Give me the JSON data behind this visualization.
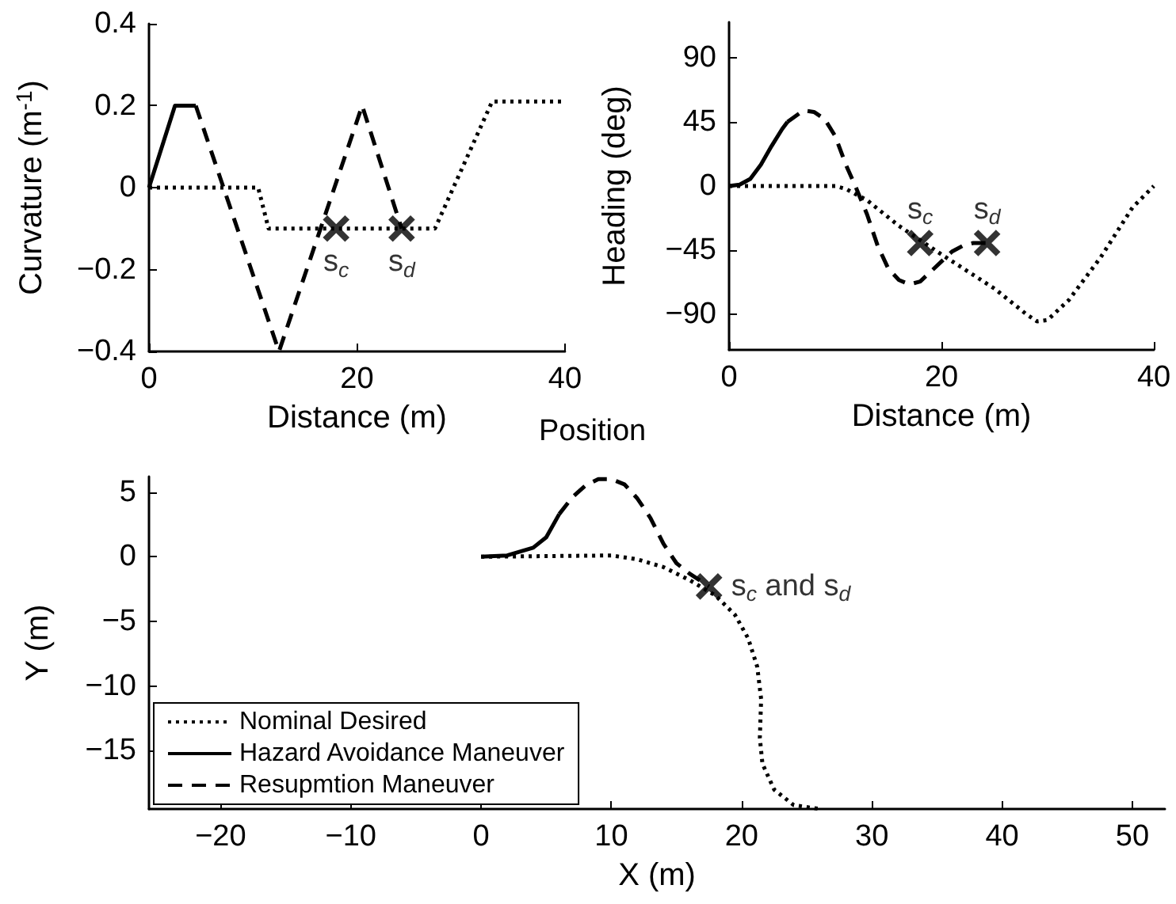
{
  "chart_data": [
    {
      "type": "line",
      "xlabel": "Distance (m)",
      "ylabel": "Curvature (m$^{-1}$)",
      "xlim": [
        0,
        40
      ],
      "ylim": [
        -0.4,
        0.4
      ],
      "xticks": [
        0,
        20,
        40
      ],
      "yticks": [
        -0.4,
        -0.2,
        0,
        0.2,
        0.4
      ],
      "series": [
        {
          "line_style": "dotted",
          "marker": "none",
          "color": "#000000",
          "x": [
            0,
            10.5,
            11.5,
            27.5,
            33,
            40
          ],
          "values": [
            0,
            0,
            -0.1,
            -0.1,
            0.21,
            0.21
          ]
        },
        {
          "line_style": "solid",
          "marker": "none",
          "color": "#000000",
          "x": [
            0,
            2.5,
            4.5
          ],
          "values": [
            0,
            0.2,
            0.2
          ]
        },
        {
          "line_style": "dashed",
          "marker": "none",
          "color": "#000000",
          "x": [
            4.5,
            12.5,
            20.5,
            24.3
          ],
          "values": [
            0.2,
            -0.4,
            0.2,
            -0.1
          ]
        },
        {
          "type": "scatter",
          "marker": "cross",
          "color": "#000000",
          "x": [
            18,
            24.3
          ],
          "values": [
            -0.1,
            -0.1
          ]
        }
      ],
      "annotations": [
        {
          "text": "s$_{c}$",
          "x": 18,
          "y": -0.1
        },
        {
          "text": "s$_{d}$",
          "x": 24.3,
          "y": -0.1
        }
      ]
    },
    {
      "type": "line",
      "xlabel": "Distance (m)",
      "ylabel": "Heading (deg)",
      "xlim": [
        0,
        40
      ],
      "ylim": [
        -115,
        115
      ],
      "xticks": [
        0,
        20,
        40
      ],
      "yticks": [
        -90,
        -45,
        0,
        45,
        90
      ],
      "series": [
        {
          "line_style": "dotted",
          "marker": "none",
          "color": "#000000",
          "x": [
            0,
            10,
            11,
            13,
            16,
            20,
            25,
            28,
            29,
            30,
            32,
            35,
            38,
            40
          ],
          "values": [
            0,
            0,
            -2,
            -10,
            -28,
            -48,
            -72,
            -90,
            -95,
            -94,
            -80,
            -50,
            -15,
            0
          ]
        },
        {
          "line_style": "solid",
          "marker": "none",
          "color": "#000000",
          "x": [
            0,
            1,
            2,
            3,
            4,
            5,
            5.5
          ],
          "values": [
            0,
            1,
            5,
            15,
            28,
            40,
            45
          ]
        },
        {
          "line_style": "dashed",
          "marker": "none",
          "color": "#000000",
          "x": [
            5.5,
            7,
            8,
            9,
            10,
            11,
            12,
            13,
            14,
            15,
            16,
            17,
            18,
            19,
            20,
            21,
            22,
            23,
            24.3
          ],
          "values": [
            45,
            53,
            52,
            47,
            35,
            15,
            -2,
            -20,
            -42,
            -58,
            -66,
            -69,
            -67,
            -60,
            -53,
            -46,
            -42,
            -40,
            -40
          ]
        },
        {
          "type": "scatter",
          "marker": "cross",
          "color": "#000000",
          "x": [
            18,
            24.3
          ],
          "values": [
            -40,
            -40
          ]
        }
      ],
      "annotations": [
        {
          "text": "s$_{c}$",
          "x": 18,
          "y": -40
        },
        {
          "text": "s$_{d}$",
          "x": 24.3,
          "y": -40
        }
      ]
    },
    {
      "type": "line",
      "title": "Position",
      "xlabel": "X (m)",
      "ylabel": "Y (m)",
      "xlim": [
        -25.5,
        52.5
      ],
      "ylim": [
        -19.5,
        6.2
      ],
      "xticks": [
        -20,
        -10,
        0,
        10,
        20,
        30,
        40,
        50
      ],
      "yticks": [
        -15,
        -10,
        -5,
        0,
        5
      ],
      "legend": "bottom left",
      "series": [
        {
          "name": "Nominal Desired",
          "line_style": "dotted",
          "marker": "none",
          "color": "#000000",
          "x": [
            0,
            10,
            12,
            14,
            16,
            18,
            19.5,
            20.5,
            21.2,
            21.5,
            21.4,
            21.6,
            22.5,
            24,
            26
          ],
          "values": [
            0,
            0.1,
            -0.2,
            -0.8,
            -1.8,
            -3,
            -4.5,
            -6.3,
            -8.5,
            -11,
            -14,
            -16,
            -18,
            -19.2,
            -19.5
          ]
        },
        {
          "name": "Hazard Avoidance Maneuver",
          "line_style": "solid",
          "marker": "none",
          "color": "#000000",
          "x": [
            0,
            2,
            4,
            5,
            6
          ],
          "values": [
            0,
            0.1,
            0.7,
            1.5,
            3.3
          ]
        },
        {
          "name": "Resupmtion Maneuver",
          "line_style": "dashed",
          "marker": "none",
          "color": "#000000",
          "x": [
            6,
            7,
            8,
            9,
            10,
            11,
            12,
            13,
            14,
            15,
            16,
            17.5
          ],
          "values": [
            3.3,
            4.6,
            5.5,
            6,
            6,
            5.6,
            4.5,
            3,
            1,
            -0.5,
            -1.3,
            -2.3
          ]
        },
        {
          "type": "scatter",
          "marker": "cross",
          "color": "#000000",
          "x": [
            17.5
          ],
          "values": [
            -2.3
          ]
        }
      ],
      "annotations": [
        {
          "text": "s$_{c}$ and s$_{d}$",
          "x": 17.5,
          "y": -2.3
        }
      ]
    }
  ]
}
